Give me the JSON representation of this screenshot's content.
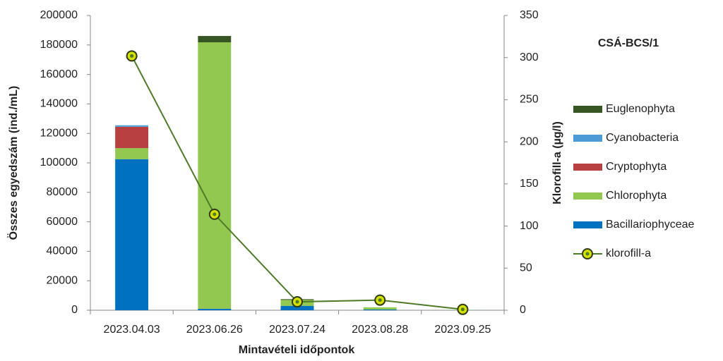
{
  "chart_data": {
    "type": "bar",
    "stacked": true,
    "title": "CSÁ-BCS/1",
    "x_label": "Mintavételi időpontok",
    "y_label": "Összes egyedszám (ind./mL)",
    "y2_label": "Klorofill-a  (µg/l)",
    "categories": [
      "2023.04.03",
      "2023.06.26",
      "2023.07.24",
      "2023.08.28",
      "2023.09.25"
    ],
    "series": [
      {
        "name": "Bacillariophyceae",
        "color": "#0070c0",
        "values": [
          102500,
          1000,
          3000,
          500,
          100
        ]
      },
      {
        "name": "Chlorophyta",
        "color": "#92c84f",
        "values": [
          7500,
          180800,
          4000,
          1500,
          100
        ]
      },
      {
        "name": "Cryptophyta",
        "color": "#b94040",
        "values": [
          14500,
          0,
          0,
          0,
          0
        ]
      },
      {
        "name": "Cyanobacteria",
        "color": "#4a9bd6",
        "values": [
          1000,
          0,
          0,
          0,
          0
        ]
      },
      {
        "name": "Euglenophyta",
        "color": "#375623",
        "values": [
          0,
          4300,
          500,
          0,
          0
        ]
      },
      {
        "name": "klorofill-a",
        "type": "line",
        "axis": "y2",
        "color": "#4f7a28",
        "marker_color": "#d4e000",
        "values": [
          302,
          114,
          10,
          12,
          1
        ]
      }
    ],
    "ylim": [
      0,
      200000
    ],
    "yticks": [
      0,
      20000,
      40000,
      60000,
      80000,
      100000,
      120000,
      140000,
      160000,
      180000,
      200000
    ],
    "y2lim": [
      0,
      350
    ],
    "y2ticks": [
      0,
      50,
      100,
      150,
      200,
      250,
      300,
      350
    ],
    "legend": "right",
    "grid": false
  }
}
